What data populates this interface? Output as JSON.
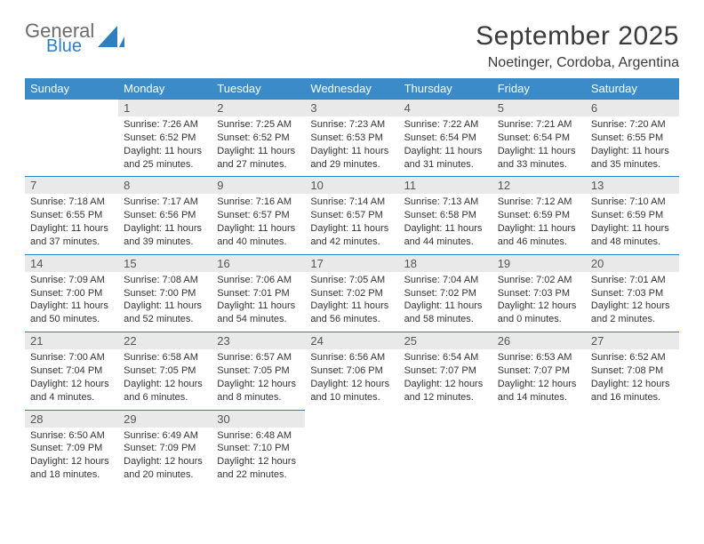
{
  "logo": {
    "word1": "General",
    "word2": "Blue",
    "word1_color": "#6b6b6b",
    "word2_color": "#2f7ec0",
    "mark_color": "#2f7ec0"
  },
  "title": "September 2025",
  "location": "Noetinger, Cordoba, Argentina",
  "colors": {
    "header_bg": "#3b8bc8",
    "header_text": "#ffffff",
    "row_border": "#2f7ec0",
    "daynum_bg": "#e9e9e9",
    "daynum_text": "#555555",
    "body_text": "#333333",
    "page_bg": "#ffffff"
  },
  "typography": {
    "title_fontsize": 30,
    "location_fontsize": 16,
    "dow_fontsize": 13,
    "cell_fontsize": 11
  },
  "days_of_week": [
    "Sunday",
    "Monday",
    "Tuesday",
    "Wednesday",
    "Thursday",
    "Friday",
    "Saturday"
  ],
  "weeks": [
    [
      null,
      {
        "n": "1",
        "sr": "7:26 AM",
        "ss": "6:52 PM",
        "dl": "11 hours and 25 minutes."
      },
      {
        "n": "2",
        "sr": "7:25 AM",
        "ss": "6:52 PM",
        "dl": "11 hours and 27 minutes."
      },
      {
        "n": "3",
        "sr": "7:23 AM",
        "ss": "6:53 PM",
        "dl": "11 hours and 29 minutes."
      },
      {
        "n": "4",
        "sr": "7:22 AM",
        "ss": "6:54 PM",
        "dl": "11 hours and 31 minutes."
      },
      {
        "n": "5",
        "sr": "7:21 AM",
        "ss": "6:54 PM",
        "dl": "11 hours and 33 minutes."
      },
      {
        "n": "6",
        "sr": "7:20 AM",
        "ss": "6:55 PM",
        "dl": "11 hours and 35 minutes."
      }
    ],
    [
      {
        "n": "7",
        "sr": "7:18 AM",
        "ss": "6:55 PM",
        "dl": "11 hours and 37 minutes."
      },
      {
        "n": "8",
        "sr": "7:17 AM",
        "ss": "6:56 PM",
        "dl": "11 hours and 39 minutes."
      },
      {
        "n": "9",
        "sr": "7:16 AM",
        "ss": "6:57 PM",
        "dl": "11 hours and 40 minutes."
      },
      {
        "n": "10",
        "sr": "7:14 AM",
        "ss": "6:57 PM",
        "dl": "11 hours and 42 minutes."
      },
      {
        "n": "11",
        "sr": "7:13 AM",
        "ss": "6:58 PM",
        "dl": "11 hours and 44 minutes."
      },
      {
        "n": "12",
        "sr": "7:12 AM",
        "ss": "6:59 PM",
        "dl": "11 hours and 46 minutes."
      },
      {
        "n": "13",
        "sr": "7:10 AM",
        "ss": "6:59 PM",
        "dl": "11 hours and 48 minutes."
      }
    ],
    [
      {
        "n": "14",
        "sr": "7:09 AM",
        "ss": "7:00 PM",
        "dl": "11 hours and 50 minutes."
      },
      {
        "n": "15",
        "sr": "7:08 AM",
        "ss": "7:00 PM",
        "dl": "11 hours and 52 minutes."
      },
      {
        "n": "16",
        "sr": "7:06 AM",
        "ss": "7:01 PM",
        "dl": "11 hours and 54 minutes."
      },
      {
        "n": "17",
        "sr": "7:05 AM",
        "ss": "7:02 PM",
        "dl": "11 hours and 56 minutes."
      },
      {
        "n": "18",
        "sr": "7:04 AM",
        "ss": "7:02 PM",
        "dl": "11 hours and 58 minutes."
      },
      {
        "n": "19",
        "sr": "7:02 AM",
        "ss": "7:03 PM",
        "dl": "12 hours and 0 minutes."
      },
      {
        "n": "20",
        "sr": "7:01 AM",
        "ss": "7:03 PM",
        "dl": "12 hours and 2 minutes."
      }
    ],
    [
      {
        "n": "21",
        "sr": "7:00 AM",
        "ss": "7:04 PM",
        "dl": "12 hours and 4 minutes."
      },
      {
        "n": "22",
        "sr": "6:58 AM",
        "ss": "7:05 PM",
        "dl": "12 hours and 6 minutes."
      },
      {
        "n": "23",
        "sr": "6:57 AM",
        "ss": "7:05 PM",
        "dl": "12 hours and 8 minutes."
      },
      {
        "n": "24",
        "sr": "6:56 AM",
        "ss": "7:06 PM",
        "dl": "12 hours and 10 minutes."
      },
      {
        "n": "25",
        "sr": "6:54 AM",
        "ss": "7:07 PM",
        "dl": "12 hours and 12 minutes."
      },
      {
        "n": "26",
        "sr": "6:53 AM",
        "ss": "7:07 PM",
        "dl": "12 hours and 14 minutes."
      },
      {
        "n": "27",
        "sr": "6:52 AM",
        "ss": "7:08 PM",
        "dl": "12 hours and 16 minutes."
      }
    ],
    [
      {
        "n": "28",
        "sr": "6:50 AM",
        "ss": "7:09 PM",
        "dl": "12 hours and 18 minutes."
      },
      {
        "n": "29",
        "sr": "6:49 AM",
        "ss": "7:09 PM",
        "dl": "12 hours and 20 minutes."
      },
      {
        "n": "30",
        "sr": "6:48 AM",
        "ss": "7:10 PM",
        "dl": "12 hours and 22 minutes."
      },
      null,
      null,
      null,
      null
    ]
  ],
  "labels": {
    "sunrise": "Sunrise:",
    "sunset": "Sunset:",
    "daylight": "Daylight:"
  }
}
